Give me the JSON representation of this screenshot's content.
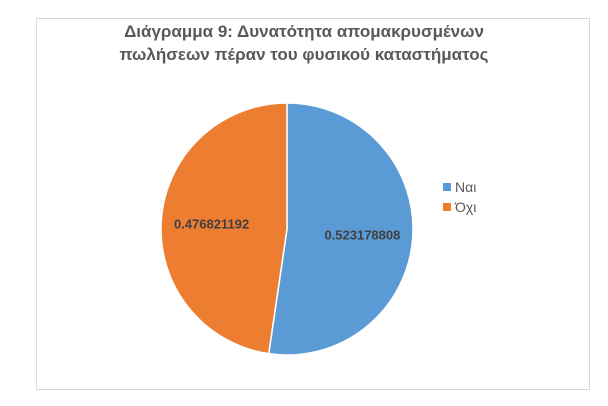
{
  "chart_data": {
    "type": "pie",
    "title_line1": "Διάγραμμα 9: Δυνατότητα απομακρυσμένων",
    "title_line2": "πωλήσεων πέραν του φυσικού καταστήματος",
    "categories": [
      "Ναι",
      "Όχι"
    ],
    "values": [
      0.523178808,
      0.476821192
    ],
    "data_labels": [
      "0.523178808",
      "0.476821192"
    ],
    "colors": [
      "#5B9BD5",
      "#ED7D31"
    ],
    "start_angle": "top, clockwise",
    "legend_placement": "right"
  }
}
